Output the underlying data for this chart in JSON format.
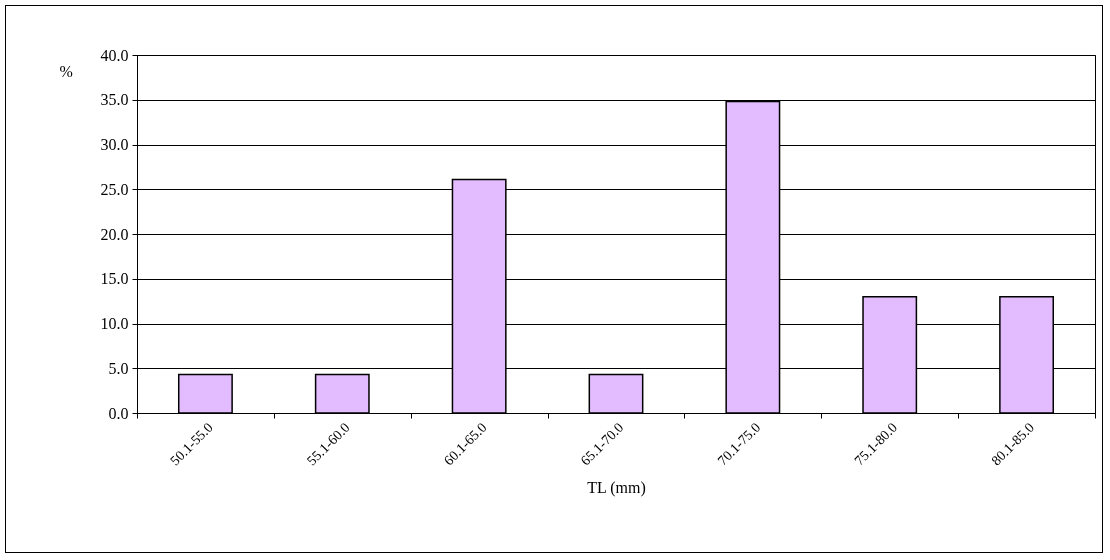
{
  "chart_data": {
    "type": "bar",
    "xlabel": "TL (mm)",
    "ylabel": "%",
    "categories": [
      "50.1-55.0",
      "55.1-60.0",
      "60.1-65.0",
      "65.1-70.0",
      "70.1-75.0",
      "75.1-80.0",
      "80.1-85.0"
    ],
    "values": [
      4.3,
      4.3,
      26.1,
      4.3,
      34.8,
      13.0,
      13.0
    ],
    "color": "#e2bcff",
    "ylim": [
      0,
      40
    ],
    "yticks": [
      {
        "value": 0,
        "label": "0.0"
      },
      {
        "value": 5,
        "label": "5.0"
      },
      {
        "value": 10,
        "label": "10.0"
      },
      {
        "value": 15,
        "label": "15.0"
      },
      {
        "value": 20,
        "label": "20.0"
      },
      {
        "value": 25,
        "label": "25.0"
      },
      {
        "value": 30,
        "label": "30.0"
      },
      {
        "value": 35,
        "label": "35.0"
      },
      {
        "value": 40,
        "label": "40.0"
      }
    ],
    "grid": "y"
  }
}
